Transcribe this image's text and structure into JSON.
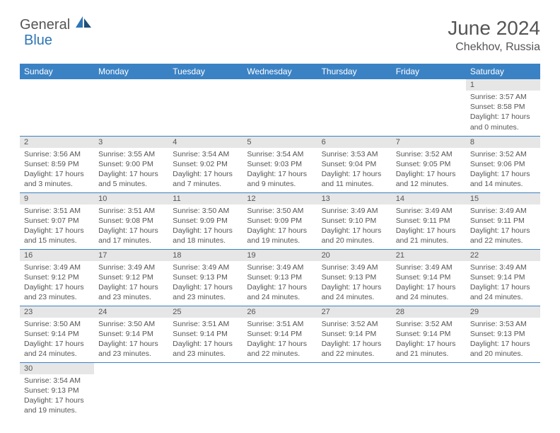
{
  "logo": {
    "part1": "General",
    "part2": "Blue"
  },
  "title": "June 2024",
  "location": "Chekhov, Russia",
  "colors": {
    "header_bg": "#3b82c4",
    "header_text": "#ffffff",
    "daynum_bg": "#e6e6e6",
    "text": "#555555",
    "rule": "#3b82c4",
    "logo_blue": "#2e75b6"
  },
  "weekdays": [
    "Sunday",
    "Monday",
    "Tuesday",
    "Wednesday",
    "Thursday",
    "Friday",
    "Saturday"
  ],
  "weeks": [
    [
      null,
      null,
      null,
      null,
      null,
      null,
      {
        "n": "1",
        "sr": "Sunrise: 3:57 AM",
        "ss": "Sunset: 8:58 PM",
        "d1": "Daylight: 17 hours",
        "d2": "and 0 minutes."
      }
    ],
    [
      {
        "n": "2",
        "sr": "Sunrise: 3:56 AM",
        "ss": "Sunset: 8:59 PM",
        "d1": "Daylight: 17 hours",
        "d2": "and 3 minutes."
      },
      {
        "n": "3",
        "sr": "Sunrise: 3:55 AM",
        "ss": "Sunset: 9:00 PM",
        "d1": "Daylight: 17 hours",
        "d2": "and 5 minutes."
      },
      {
        "n": "4",
        "sr": "Sunrise: 3:54 AM",
        "ss": "Sunset: 9:02 PM",
        "d1": "Daylight: 17 hours",
        "d2": "and 7 minutes."
      },
      {
        "n": "5",
        "sr": "Sunrise: 3:54 AM",
        "ss": "Sunset: 9:03 PM",
        "d1": "Daylight: 17 hours",
        "d2": "and 9 minutes."
      },
      {
        "n": "6",
        "sr": "Sunrise: 3:53 AM",
        "ss": "Sunset: 9:04 PM",
        "d1": "Daylight: 17 hours",
        "d2": "and 11 minutes."
      },
      {
        "n": "7",
        "sr": "Sunrise: 3:52 AM",
        "ss": "Sunset: 9:05 PM",
        "d1": "Daylight: 17 hours",
        "d2": "and 12 minutes."
      },
      {
        "n": "8",
        "sr": "Sunrise: 3:52 AM",
        "ss": "Sunset: 9:06 PM",
        "d1": "Daylight: 17 hours",
        "d2": "and 14 minutes."
      }
    ],
    [
      {
        "n": "9",
        "sr": "Sunrise: 3:51 AM",
        "ss": "Sunset: 9:07 PM",
        "d1": "Daylight: 17 hours",
        "d2": "and 15 minutes."
      },
      {
        "n": "10",
        "sr": "Sunrise: 3:51 AM",
        "ss": "Sunset: 9:08 PM",
        "d1": "Daylight: 17 hours",
        "d2": "and 17 minutes."
      },
      {
        "n": "11",
        "sr": "Sunrise: 3:50 AM",
        "ss": "Sunset: 9:09 PM",
        "d1": "Daylight: 17 hours",
        "d2": "and 18 minutes."
      },
      {
        "n": "12",
        "sr": "Sunrise: 3:50 AM",
        "ss": "Sunset: 9:09 PM",
        "d1": "Daylight: 17 hours",
        "d2": "and 19 minutes."
      },
      {
        "n": "13",
        "sr": "Sunrise: 3:49 AM",
        "ss": "Sunset: 9:10 PM",
        "d1": "Daylight: 17 hours",
        "d2": "and 20 minutes."
      },
      {
        "n": "14",
        "sr": "Sunrise: 3:49 AM",
        "ss": "Sunset: 9:11 PM",
        "d1": "Daylight: 17 hours",
        "d2": "and 21 minutes."
      },
      {
        "n": "15",
        "sr": "Sunrise: 3:49 AM",
        "ss": "Sunset: 9:11 PM",
        "d1": "Daylight: 17 hours",
        "d2": "and 22 minutes."
      }
    ],
    [
      {
        "n": "16",
        "sr": "Sunrise: 3:49 AM",
        "ss": "Sunset: 9:12 PM",
        "d1": "Daylight: 17 hours",
        "d2": "and 23 minutes."
      },
      {
        "n": "17",
        "sr": "Sunrise: 3:49 AM",
        "ss": "Sunset: 9:12 PM",
        "d1": "Daylight: 17 hours",
        "d2": "and 23 minutes."
      },
      {
        "n": "18",
        "sr": "Sunrise: 3:49 AM",
        "ss": "Sunset: 9:13 PM",
        "d1": "Daylight: 17 hours",
        "d2": "and 23 minutes."
      },
      {
        "n": "19",
        "sr": "Sunrise: 3:49 AM",
        "ss": "Sunset: 9:13 PM",
        "d1": "Daylight: 17 hours",
        "d2": "and 24 minutes."
      },
      {
        "n": "20",
        "sr": "Sunrise: 3:49 AM",
        "ss": "Sunset: 9:13 PM",
        "d1": "Daylight: 17 hours",
        "d2": "and 24 minutes."
      },
      {
        "n": "21",
        "sr": "Sunrise: 3:49 AM",
        "ss": "Sunset: 9:14 PM",
        "d1": "Daylight: 17 hours",
        "d2": "and 24 minutes."
      },
      {
        "n": "22",
        "sr": "Sunrise: 3:49 AM",
        "ss": "Sunset: 9:14 PM",
        "d1": "Daylight: 17 hours",
        "d2": "and 24 minutes."
      }
    ],
    [
      {
        "n": "23",
        "sr": "Sunrise: 3:50 AM",
        "ss": "Sunset: 9:14 PM",
        "d1": "Daylight: 17 hours",
        "d2": "and 24 minutes."
      },
      {
        "n": "24",
        "sr": "Sunrise: 3:50 AM",
        "ss": "Sunset: 9:14 PM",
        "d1": "Daylight: 17 hours",
        "d2": "and 23 minutes."
      },
      {
        "n": "25",
        "sr": "Sunrise: 3:51 AM",
        "ss": "Sunset: 9:14 PM",
        "d1": "Daylight: 17 hours",
        "d2": "and 23 minutes."
      },
      {
        "n": "26",
        "sr": "Sunrise: 3:51 AM",
        "ss": "Sunset: 9:14 PM",
        "d1": "Daylight: 17 hours",
        "d2": "and 22 minutes."
      },
      {
        "n": "27",
        "sr": "Sunrise: 3:52 AM",
        "ss": "Sunset: 9:14 PM",
        "d1": "Daylight: 17 hours",
        "d2": "and 22 minutes."
      },
      {
        "n": "28",
        "sr": "Sunrise: 3:52 AM",
        "ss": "Sunset: 9:14 PM",
        "d1": "Daylight: 17 hours",
        "d2": "and 21 minutes."
      },
      {
        "n": "29",
        "sr": "Sunrise: 3:53 AM",
        "ss": "Sunset: 9:13 PM",
        "d1": "Daylight: 17 hours",
        "d2": "and 20 minutes."
      }
    ],
    [
      {
        "n": "30",
        "sr": "Sunrise: 3:54 AM",
        "ss": "Sunset: 9:13 PM",
        "d1": "Daylight: 17 hours",
        "d2": "and 19 minutes."
      },
      null,
      null,
      null,
      null,
      null,
      null
    ]
  ]
}
